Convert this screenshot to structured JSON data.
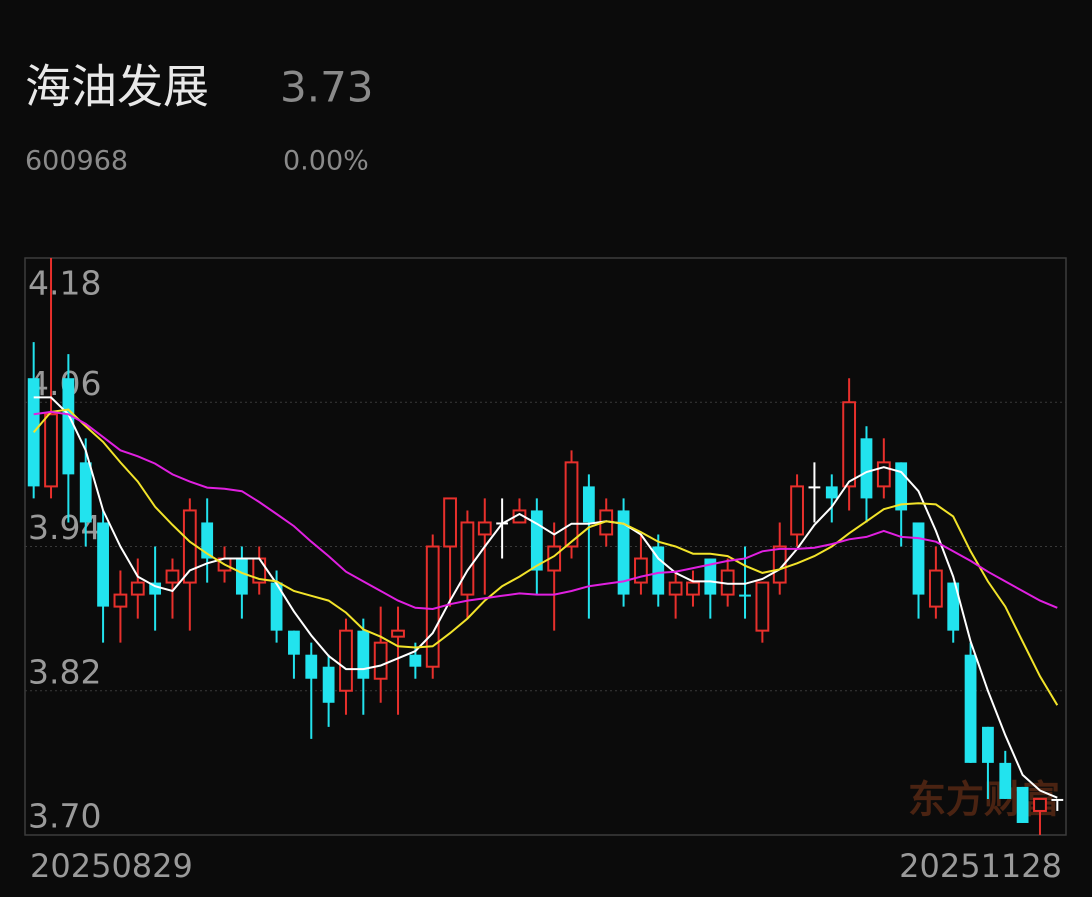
{
  "header": {
    "name": "海油发展",
    "price": "3.73",
    "code": "600968",
    "change": "0.00%"
  },
  "chart_data": {
    "type": "candlestick",
    "categories": [
      "20250829",
      null,
      null,
      null,
      null,
      null,
      null,
      null,
      null,
      null,
      null,
      null,
      null,
      null,
      null,
      null,
      null,
      null,
      null,
      null,
      null,
      null,
      null,
      null,
      null,
      null,
      null,
      null,
      null,
      null,
      null,
      null,
      null,
      null,
      null,
      null,
      null,
      null,
      null,
      null,
      null,
      null,
      null,
      null,
      null,
      null,
      null,
      null,
      null,
      null,
      null,
      null,
      null,
      null,
      null,
      null,
      null,
      null,
      null,
      "20251128"
    ],
    "open": [
      4.08,
      3.99,
      4.08,
      4.01,
      3.96,
      3.89,
      3.9,
      3.91,
      3.91,
      3.91,
      3.96,
      3.92,
      3.93,
      3.91,
      3.91,
      3.87,
      3.85,
      3.84,
      3.82,
      3.87,
      3.83,
      3.865,
      3.85,
      3.84,
      3.94,
      3.9,
      3.95,
      3.96,
      3.96,
      3.97,
      3.92,
      3.94,
      3.99,
      3.95,
      3.97,
      3.91,
      3.94,
      3.9,
      3.9,
      3.93,
      3.9,
      3.9,
      3.87,
      3.91,
      3.95,
      3.99,
      3.99,
      3.99,
      4.03,
      3.99,
      4.01,
      3.96,
      3.89,
      3.91,
      3.85,
      3.79,
      3.76,
      3.74,
      3.72,
      3.73
    ],
    "high": [
      4.11,
      4.18,
      4.1,
      4.03,
      3.97,
      3.92,
      3.93,
      3.94,
      3.93,
      3.98,
      3.98,
      3.94,
      3.94,
      3.94,
      3.92,
      3.87,
      3.86,
      3.85,
      3.88,
      3.88,
      3.89,
      3.89,
      3.86,
      3.95,
      3.98,
      3.97,
      3.98,
      3.98,
      3.98,
      3.98,
      3.96,
      4.02,
      4.0,
      3.98,
      3.98,
      3.95,
      3.95,
      3.92,
      3.92,
      3.93,
      3.93,
      3.94,
      3.91,
      3.96,
      4.0,
      4.01,
      4.0,
      4.08,
      4.04,
      4.03,
      4.01,
      3.96,
      3.94,
      3.91,
      3.86,
      3.79,
      3.77,
      3.74,
      3.73,
      3.73
    ],
    "low": [
      3.98,
      3.98,
      3.96,
      3.94,
      3.86,
      3.86,
      3.88,
      3.87,
      3.88,
      3.87,
      3.91,
      3.91,
      3.88,
      3.9,
      3.86,
      3.83,
      3.78,
      3.79,
      3.8,
      3.8,
      3.81,
      3.8,
      3.83,
      3.83,
      3.89,
      3.88,
      3.9,
      3.93,
      3.96,
      3.9,
      3.87,
      3.93,
      3.88,
      3.94,
      3.89,
      3.9,
      3.89,
      3.88,
      3.89,
      3.88,
      3.89,
      3.88,
      3.86,
      3.9,
      3.94,
      3.96,
      3.96,
      3.97,
      3.96,
      3.98,
      3.94,
      3.88,
      3.88,
      3.86,
      3.76,
      3.73,
      3.73,
      3.71,
      3.7,
      3.72
    ],
    "close": [
      3.99,
      4.05,
      4.0,
      3.96,
      3.89,
      3.9,
      3.91,
      3.9,
      3.92,
      3.97,
      3.93,
      3.93,
      3.9,
      3.93,
      3.87,
      3.85,
      3.83,
      3.81,
      3.87,
      3.83,
      3.86,
      3.87,
      3.84,
      3.94,
      3.98,
      3.96,
      3.96,
      3.96,
      3.97,
      3.92,
      3.94,
      4.01,
      3.96,
      3.97,
      3.9,
      3.93,
      3.9,
      3.91,
      3.91,
      3.9,
      3.92,
      3.899,
      3.91,
      3.94,
      3.99,
      3.99,
      3.98,
      4.06,
      3.98,
      4.01,
      3.97,
      3.9,
      3.92,
      3.87,
      3.76,
      3.76,
      3.73,
      3.71,
      3.73,
      3.73
    ],
    "up_color": "#e8302c",
    "down_color": "#22e3ee",
    "flat_color": "#ffffff",
    "lines": [
      {
        "color": "#ffffff",
        "values": [
          4.064,
          4.064,
          4.05,
          4.02,
          3.97,
          3.94,
          3.915,
          3.907,
          3.903,
          3.92,
          3.926,
          3.93,
          3.93,
          3.93,
          3.909,
          3.886,
          3.866,
          3.849,
          3.838,
          3.838,
          3.841,
          3.847,
          3.853,
          3.868,
          3.895,
          3.92,
          3.94,
          3.959,
          3.967,
          3.959,
          3.95,
          3.959,
          3.959,
          3.961,
          3.959,
          3.95,
          3.93,
          3.918,
          3.911,
          3.911,
          3.909,
          3.909,
          3.913,
          3.921,
          3.938,
          3.958,
          3.973,
          3.994,
          4.002,
          4.006,
          4.002,
          3.986,
          3.953,
          3.915,
          3.861,
          3.82,
          3.783,
          3.75,
          3.737,
          3.731
        ]
      },
      {
        "color": "#f2e32a",
        "values": [
          4.035,
          4.052,
          4.054,
          4.04,
          4.027,
          4.01,
          3.994,
          3.973,
          3.958,
          3.944,
          3.934,
          3.925,
          3.918,
          3.913,
          3.911,
          3.903,
          3.899,
          3.895,
          3.885,
          3.871,
          3.865,
          3.857,
          3.856,
          3.857,
          3.868,
          3.88,
          3.895,
          3.907,
          3.915,
          3.924,
          3.932,
          3.944,
          3.956,
          3.961,
          3.959,
          3.952,
          3.944,
          3.94,
          3.934,
          3.934,
          3.932,
          3.924,
          3.918,
          3.921,
          3.926,
          3.932,
          3.94,
          3.951,
          3.961,
          3.971,
          3.975,
          3.976,
          3.975,
          3.965,
          3.936,
          3.911,
          3.89,
          3.861,
          3.832,
          3.808
        ]
      },
      {
        "color": "#e020e0",
        "values": [
          4.05,
          4.052,
          4.05,
          4.042,
          4.031,
          4.02,
          4.015,
          4.009,
          4.0,
          3.994,
          3.989,
          3.988,
          3.986,
          3.977,
          3.967,
          3.957,
          3.944,
          3.932,
          3.919,
          3.911,
          3.903,
          3.895,
          3.889,
          3.888,
          3.892,
          3.895,
          3.897,
          3.899,
          3.901,
          3.9,
          3.9,
          3.903,
          3.907,
          3.909,
          3.911,
          3.915,
          3.918,
          3.919,
          3.922,
          3.925,
          3.928,
          3.93,
          3.936,
          3.938,
          3.938,
          3.939,
          3.942,
          3.946,
          3.948,
          3.953,
          3.948,
          3.947,
          3.944,
          3.936,
          3.928,
          3.919,
          3.911,
          3.903,
          3.895,
          3.889
        ]
      }
    ],
    "watermark": "东方财富",
    "ylim": [
      3.7,
      4.18
    ],
    "yticks": [
      {
        "value": 3.7,
        "label": "3.70"
      },
      3.82,
      3.94,
      4.06,
      4.18
    ],
    "grid": true
  }
}
